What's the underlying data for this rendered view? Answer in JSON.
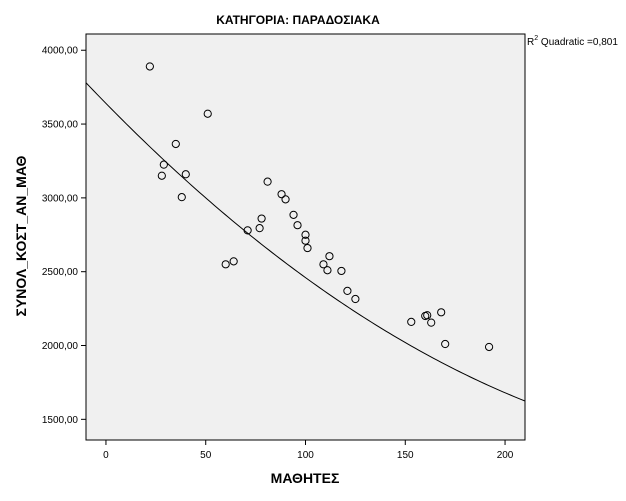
{
  "chart_data": {
    "type": "scatter",
    "title": "ΚΑΤΗΓΟΡΙΑ: ΠΑΡΑΔΟΣΙΑΚΑ",
    "xlabel": "ΜΑΘΗΤΕΣ",
    "ylabel": "ΣΥΝΟΛ_ΚΟΣΤ_ΑΝ_ΜΑΘ",
    "xlim": [
      -10,
      210
    ],
    "ylim": [
      1360,
      4110
    ],
    "x_ticks": [
      0,
      50,
      100,
      150,
      200
    ],
    "x_tick_labels": [
      "0",
      "50",
      "100",
      "150",
      "200"
    ],
    "y_ticks": [
      1500,
      2000,
      2500,
      3000,
      3500,
      4000
    ],
    "y_tick_labels": [
      "1500,00",
      "2000,00",
      "2500,00",
      "3000,00",
      "3500,00",
      "4000,00"
    ],
    "fit_annotation": {
      "superscript": "2",
      "prefix": "R",
      "text": " Quadratic =0,801"
    },
    "fit_line": {
      "type": "quadratic",
      "coefficients": {
        "a": 0.02,
        "b": -13.8,
        "c": 3640
      }
    },
    "points": [
      {
        "x": 22,
        "y": 3890
      },
      {
        "x": 51,
        "y": 3570
      },
      {
        "x": 35,
        "y": 3365
      },
      {
        "x": 29,
        "y": 3225
      },
      {
        "x": 28,
        "y": 3150
      },
      {
        "x": 40,
        "y": 3160
      },
      {
        "x": 38,
        "y": 3005
      },
      {
        "x": 81,
        "y": 3110
      },
      {
        "x": 88,
        "y": 3025
      },
      {
        "x": 90,
        "y": 2990
      },
      {
        "x": 94,
        "y": 2885
      },
      {
        "x": 96,
        "y": 2815
      },
      {
        "x": 78,
        "y": 2860
      },
      {
        "x": 77,
        "y": 2795
      },
      {
        "x": 71,
        "y": 2780
      },
      {
        "x": 100,
        "y": 2750
      },
      {
        "x": 100,
        "y": 2710
      },
      {
        "x": 101,
        "y": 2660
      },
      {
        "x": 112,
        "y": 2605
      },
      {
        "x": 109,
        "y": 2550
      },
      {
        "x": 111,
        "y": 2510
      },
      {
        "x": 118,
        "y": 2505
      },
      {
        "x": 64,
        "y": 2570
      },
      {
        "x": 60,
        "y": 2550
      },
      {
        "x": 121,
        "y": 2370
      },
      {
        "x": 125,
        "y": 2315
      },
      {
        "x": 168,
        "y": 2225
      },
      {
        "x": 161,
        "y": 2205
      },
      {
        "x": 160,
        "y": 2200
      },
      {
        "x": 153,
        "y": 2160
      },
      {
        "x": 163,
        "y": 2155
      },
      {
        "x": 170,
        "y": 2010
      },
      {
        "x": 192,
        "y": 1990
      }
    ],
    "colors": {
      "plot_background": "#f0f0f0",
      "marker_stroke": "#000000",
      "fit_line": "#000000",
      "axis": "#000000"
    },
    "grid": false,
    "legend": "none"
  }
}
